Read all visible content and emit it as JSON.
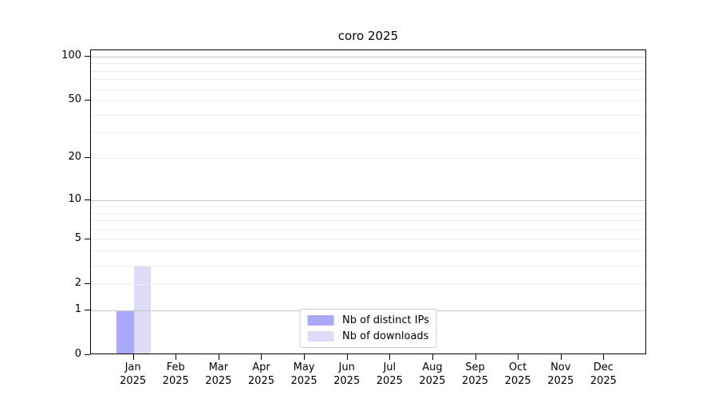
{
  "page": {
    "background": "#ffffff"
  },
  "chart_data": {
    "type": "bar",
    "title": "coro 2025",
    "categories": [
      "Jan",
      "Feb",
      "Mar",
      "Apr",
      "May",
      "Jun",
      "Jul",
      "Aug",
      "Sep",
      "Oct",
      "Nov",
      "Dec"
    ],
    "category_year": "2025",
    "series": [
      {
        "name": "Nb of distinct IPs",
        "color": "#a9a9f7",
        "values": [
          1,
          0,
          0,
          0,
          0,
          0,
          0,
          0,
          0,
          0,
          0,
          0
        ]
      },
      {
        "name": "Nb of downloads",
        "color": "#dcdcf8",
        "values": [
          3,
          0,
          0,
          0,
          0,
          0,
          0,
          0,
          0,
          0,
          0,
          0
        ]
      }
    ],
    "xlabel": "",
    "ylabel": "",
    "yscale": "log1p",
    "ylim": [
      0,
      110
    ],
    "ytick_labels": [
      0,
      1,
      2,
      5,
      10,
      20,
      50,
      100
    ],
    "grid": {
      "major_values": [
        1,
        10,
        100
      ],
      "minor_values": [
        2,
        3,
        4,
        5,
        6,
        7,
        8,
        9,
        20,
        30,
        40,
        50,
        60,
        70,
        80,
        90
      ],
      "major_color": "#c8c8c8",
      "minor_color": "#ededed"
    },
    "legend_position": "lower center",
    "axis_color": "#000000"
  }
}
